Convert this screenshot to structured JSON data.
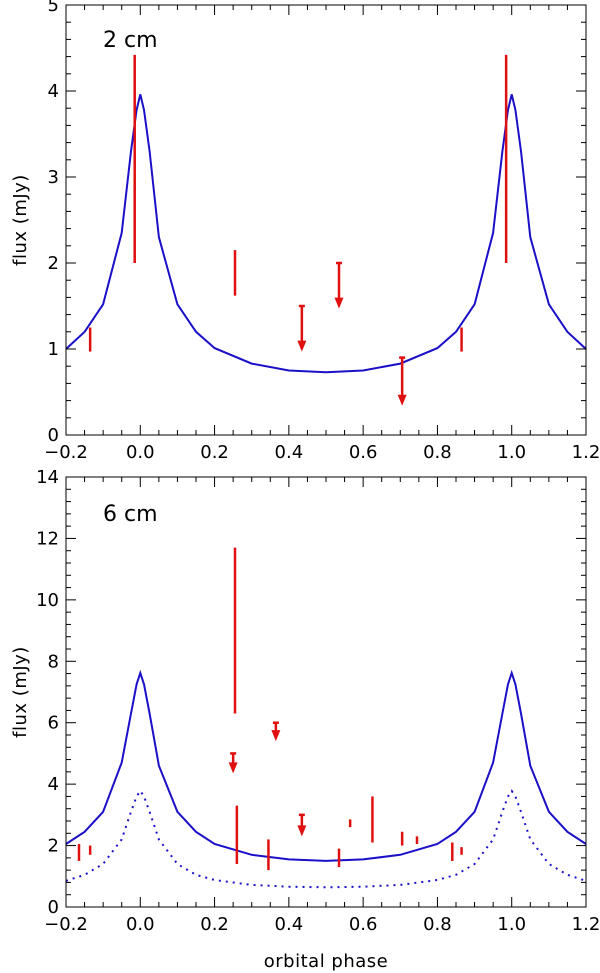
{
  "chart_data": [
    {
      "type": "line",
      "panel_label": "2 cm",
      "xlabel": "",
      "ylabel": "flux (mJy)",
      "xlim": [
        -0.2,
        1.2
      ],
      "ylim": [
        0,
        5
      ],
      "xticks": [
        -0.2,
        0.0,
        0.2,
        0.4,
        0.6,
        0.8,
        1.0,
        1.2
      ],
      "xtick_labels": [
        "−0.2",
        "0.0",
        "0.2",
        "0.4",
        "0.6",
        "0.8",
        "1.0",
        "1.2"
      ],
      "yticks": [
        0,
        1,
        2,
        3,
        4,
        5
      ],
      "ytick_labels": [
        "0",
        "1",
        "2",
        "3",
        "4",
        "5"
      ],
      "colors": {
        "model": "#1a10c8",
        "observations": "#e01010"
      },
      "series": [
        {
          "name": "model",
          "style": "solid",
          "x": [
            -0.2,
            -0.15,
            -0.1,
            -0.05,
            -0.025,
            -0.01,
            0.0,
            0.01,
            0.025,
            0.05,
            0.1,
            0.15,
            0.2,
            0.3,
            0.4,
            0.5,
            0.6,
            0.7,
            0.8,
            0.85,
            0.9,
            0.95,
            0.975,
            0.99,
            1.0,
            1.01,
            1.025,
            1.05,
            1.1,
            1.15,
            1.2
          ],
          "y": [
            1.0,
            1.2,
            1.52,
            2.35,
            3.3,
            3.78,
            3.96,
            3.78,
            3.3,
            2.3,
            1.52,
            1.2,
            1.01,
            0.83,
            0.75,
            0.73,
            0.75,
            0.83,
            1.01,
            1.2,
            1.52,
            2.35,
            3.3,
            3.78,
            3.96,
            3.78,
            3.3,
            2.3,
            1.52,
            1.2,
            1.0
          ]
        }
      ],
      "observations": [
        {
          "x": -0.135,
          "low": 0.97,
          "high": 1.25
        },
        {
          "x": -0.015,
          "low": 2.0,
          "high": 4.42
        },
        {
          "x": 0.255,
          "low": 1.62,
          "high": 2.15
        },
        {
          "x": 0.865,
          "low": 0.97,
          "high": 1.25
        },
        {
          "x": 0.985,
          "low": 2.0,
          "high": 4.42
        }
      ],
      "upper_limits": [
        {
          "x": 0.435,
          "from": 1.5,
          "to": 0.97
        },
        {
          "x": 0.535,
          "from": 2.0,
          "to": 1.47
        },
        {
          "x": 0.705,
          "from": 0.9,
          "to": 0.34
        }
      ]
    },
    {
      "type": "line",
      "panel_label": "6 cm",
      "xlabel": "orbital phase",
      "ylabel": "flux (mJy)",
      "xlim": [
        -0.2,
        1.2
      ],
      "ylim": [
        0,
        14
      ],
      "xticks": [
        -0.2,
        0.0,
        0.2,
        0.4,
        0.6,
        0.8,
        1.0,
        1.2
      ],
      "xtick_labels": [
        "−0.2",
        "0.0",
        "0.2",
        "0.4",
        "0.6",
        "0.8",
        "1.0",
        "1.2"
      ],
      "yticks": [
        0,
        2,
        4,
        6,
        8,
        10,
        12,
        14
      ],
      "ytick_labels": [
        "0",
        "2",
        "4",
        "6",
        "8",
        "10",
        "12",
        "14"
      ],
      "colors": {
        "model": "#1a10c8",
        "observations": "#e01010"
      },
      "series": [
        {
          "name": "model",
          "style": "solid",
          "x": [
            -0.2,
            -0.15,
            -0.1,
            -0.05,
            -0.025,
            -0.01,
            0.0,
            0.01,
            0.025,
            0.05,
            0.1,
            0.15,
            0.2,
            0.3,
            0.4,
            0.5,
            0.6,
            0.7,
            0.8,
            0.85,
            0.9,
            0.95,
            0.975,
            0.99,
            1.0,
            1.01,
            1.025,
            1.05,
            1.1,
            1.15,
            1.2
          ],
          "y": [
            2.05,
            2.45,
            3.1,
            4.7,
            6.3,
            7.25,
            7.62,
            7.25,
            6.3,
            4.6,
            3.1,
            2.45,
            2.05,
            1.7,
            1.55,
            1.5,
            1.55,
            1.7,
            2.05,
            2.45,
            3.1,
            4.7,
            6.3,
            7.25,
            7.62,
            7.25,
            6.3,
            4.6,
            3.1,
            2.45,
            2.05
          ]
        },
        {
          "name": "model (dotted)",
          "style": "dotted",
          "x": [
            -0.2,
            -0.15,
            -0.1,
            -0.05,
            -0.025,
            -0.01,
            0.0,
            0.01,
            0.025,
            0.05,
            0.1,
            0.15,
            0.2,
            0.3,
            0.4,
            0.5,
            0.6,
            0.7,
            0.8,
            0.85,
            0.9,
            0.95,
            0.975,
            0.99,
            1.0,
            1.01,
            1.025,
            1.05,
            1.1,
            1.15,
            1.2
          ],
          "y": [
            0.85,
            1.05,
            1.4,
            2.2,
            3.1,
            3.6,
            3.78,
            3.6,
            3.1,
            2.2,
            1.4,
            1.05,
            0.88,
            0.72,
            0.66,
            0.64,
            0.66,
            0.72,
            0.88,
            1.05,
            1.4,
            2.2,
            3.1,
            3.6,
            3.78,
            3.6,
            3.1,
            2.2,
            1.4,
            1.05,
            0.85
          ]
        }
      ],
      "observations": [
        {
          "x": -0.165,
          "low": 1.5,
          "high": 2.05
        },
        {
          "x": -0.135,
          "low": 1.7,
          "high": 2.0
        },
        {
          "x": 0.255,
          "low": 6.3,
          "high": 11.7
        },
        {
          "x": 0.26,
          "low": 1.4,
          "high": 3.3
        },
        {
          "x": 0.345,
          "low": 1.2,
          "high": 2.2
        },
        {
          "x": 0.535,
          "low": 1.3,
          "high": 1.9
        },
        {
          "x": 0.565,
          "low": 2.6,
          "high": 2.85
        },
        {
          "x": 0.625,
          "low": 2.1,
          "high": 3.6
        },
        {
          "x": 0.705,
          "low": 2.0,
          "high": 2.45
        },
        {
          "x": 0.745,
          "low": 2.05,
          "high": 2.3
        },
        {
          "x": 0.84,
          "low": 1.5,
          "high": 2.1
        },
        {
          "x": 0.865,
          "low": 1.7,
          "high": 1.95
        }
      ],
      "upper_limits": [
        {
          "x": 0.25,
          "from": 5.0,
          "to": 4.35
        },
        {
          "x": 0.365,
          "from": 6.0,
          "to": 5.4
        },
        {
          "x": 0.435,
          "from": 3.0,
          "to": 2.3
        }
      ]
    }
  ]
}
